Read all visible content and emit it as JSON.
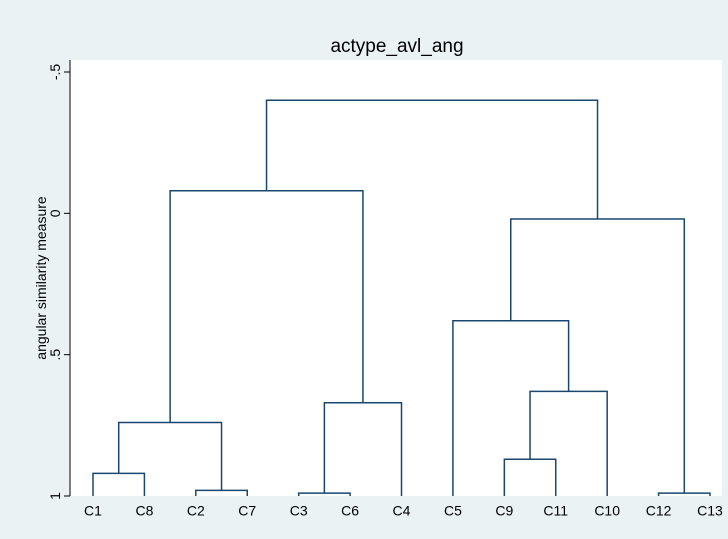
{
  "chart_data": {
    "type": "dendrogram",
    "title": "actype_avl_ang",
    "ylabel": "angular similarity measure",
    "categories": [
      "C1",
      "C8",
      "C2",
      "C7",
      "C3",
      "C6",
      "C4",
      "C5",
      "C9",
      "C11",
      "C10",
      "C12",
      "C13"
    ],
    "merges": [
      {
        "join": [
          0,
          1
        ],
        "height": 0.92
      },
      {
        "join": [
          2,
          3
        ],
        "height": 0.98
      },
      {
        "join": [
          13,
          14
        ],
        "height": 0.74
      },
      {
        "join": [
          4,
          5
        ],
        "height": 0.99
      },
      {
        "join": [
          16,
          6
        ],
        "height": 0.67
      },
      {
        "join": [
          15,
          17
        ],
        "height": -0.08
      },
      {
        "join": [
          8,
          9
        ],
        "height": 0.87
      },
      {
        "join": [
          19,
          10
        ],
        "height": 0.63
      },
      {
        "join": [
          7,
          20
        ],
        "height": 0.38
      },
      {
        "join": [
          11,
          12
        ],
        "height": 0.99
      },
      {
        "join": [
          21,
          22
        ],
        "height": 0.02
      },
      {
        "join": [
          18,
          23
        ],
        "height": -0.4
      }
    ],
    "color": "#1a476f",
    "ylim": [
      -0.5,
      1
    ],
    "yticks": [
      {
        "value": -0.5,
        "label": "-.5"
      },
      0,
      {
        "value": 0.5,
        "label": ".5"
      },
      1
    ]
  }
}
